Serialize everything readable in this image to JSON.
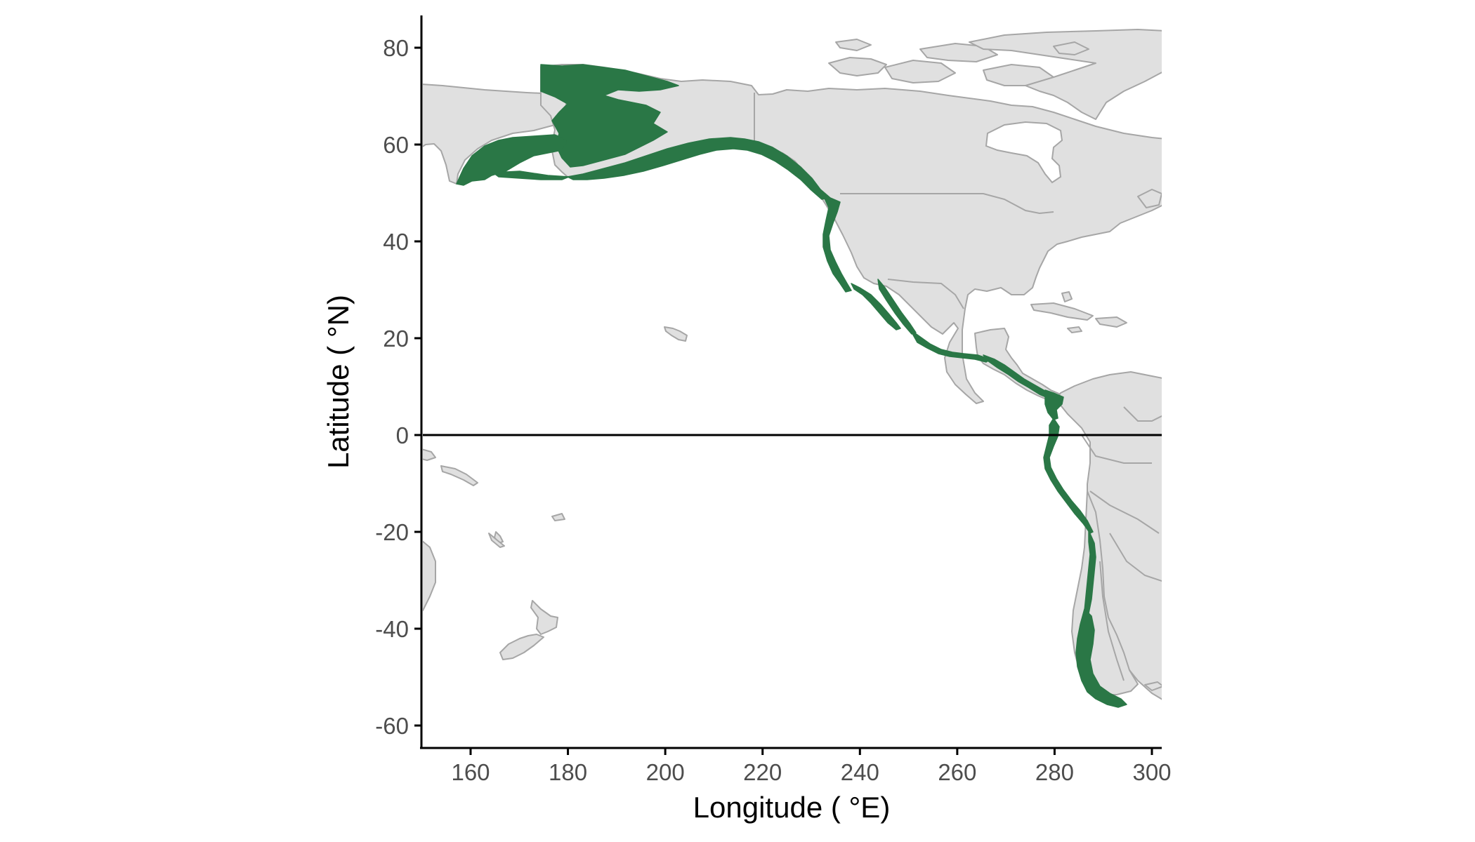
{
  "map": {
    "x_axis_title": "Longitude ( °E)",
    "y_axis_title": "Latitude ( °N)",
    "x_ticks": [
      "160",
      "180",
      "200",
      "220",
      "240",
      "260",
      "280",
      "300"
    ],
    "y_ticks": [
      "80",
      "60",
      "40",
      "20",
      "0",
      "-20",
      "-40",
      "-60"
    ],
    "lon_range": [
      150,
      302
    ],
    "lat_range": [
      -64,
      86
    ],
    "equator_line": true,
    "land_color": "#e0e0e0",
    "border_color": "#a6a6a6",
    "range_color": "#2a7746",
    "axis_color": "#000000"
  },
  "chart_data": {
    "type": "map",
    "xlabel": "Longitude ( °E)",
    "ylabel": "Latitude ( °N)",
    "xlim": [
      150,
      302
    ],
    "ylim": [
      -64,
      86
    ],
    "x_ticks": [
      160,
      180,
      200,
      220,
      240,
      260,
      280,
      300
    ],
    "y_ticks": [
      -60,
      -40,
      -20,
      0,
      20,
      40,
      60,
      80
    ],
    "reference_line": {
      "lat": 0
    },
    "grid": false
  }
}
